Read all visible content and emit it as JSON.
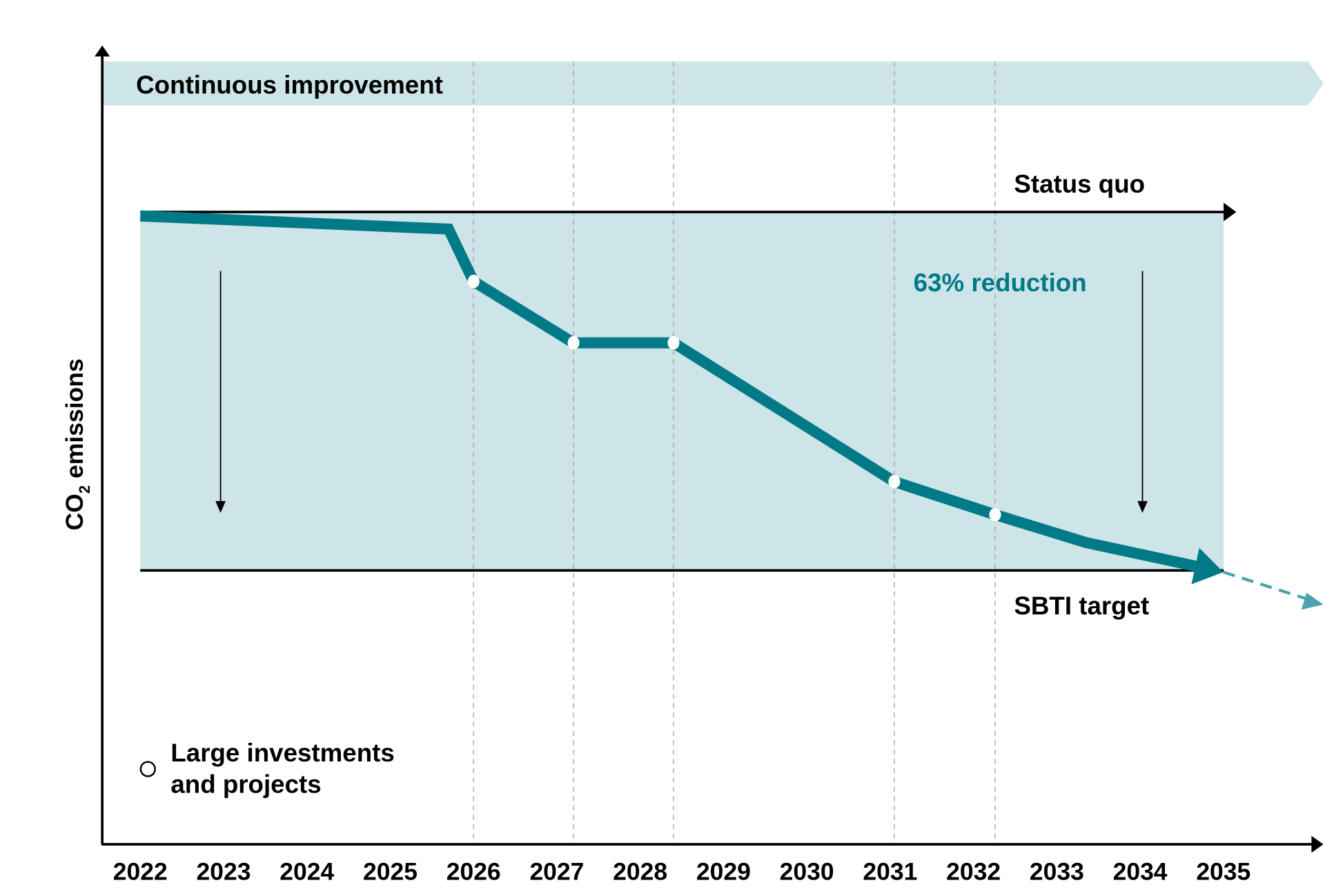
{
  "chart_data": {
    "type": "line",
    "title": "",
    "ylabel": {
      "main": "CO",
      "subscript": "2",
      "rest": " emissions"
    },
    "xlabel": "",
    "categories": [
      "2022",
      "2023",
      "2024",
      "2025",
      "2026",
      "2027",
      "2028",
      "2029",
      "2030",
      "2031",
      "2032",
      "2033",
      "2034",
      "2035"
    ],
    "xlim": [
      2022,
      2036.2
    ],
    "ylim_relative_percent": [
      0,
      100
    ],
    "grid": false,
    "banner": "Continuous improvement",
    "status_quo": {
      "label": "Status quo",
      "value": 100
    },
    "sbti_target": {
      "label": "SBTI target",
      "value": 37
    },
    "reduction_label": "63% reduction",
    "series": [
      {
        "points": [
          [
            2022,
            99.3
          ],
          [
            2025.7,
            97
          ],
          [
            2026,
            87.8
          ],
          [
            2027.2,
            77
          ],
          [
            2028.4,
            77
          ],
          [
            2031.05,
            52.6
          ],
          [
            2032.26,
            46.8
          ],
          [
            2033.35,
            41.9
          ],
          [
            2035,
            36.7
          ]
        ],
        "extension": [
          [
            2035,
            36.7
          ],
          [
            2036.2,
            31
          ]
        ]
      }
    ],
    "milestones": [
      2026,
      2027.2,
      2028.4,
      2031.05,
      2032.26
    ],
    "legend": {
      "marker_label_line1": "Large investments",
      "marker_label_line2": "and projects",
      "placement": "bottom-left"
    },
    "colors": {
      "line": "#007a87",
      "extension": "#4aa3ad",
      "band": "#cde4e8",
      "axis": "#000000",
      "reduction_text": "#007a87",
      "gridline": "#aaaaaa"
    }
  }
}
